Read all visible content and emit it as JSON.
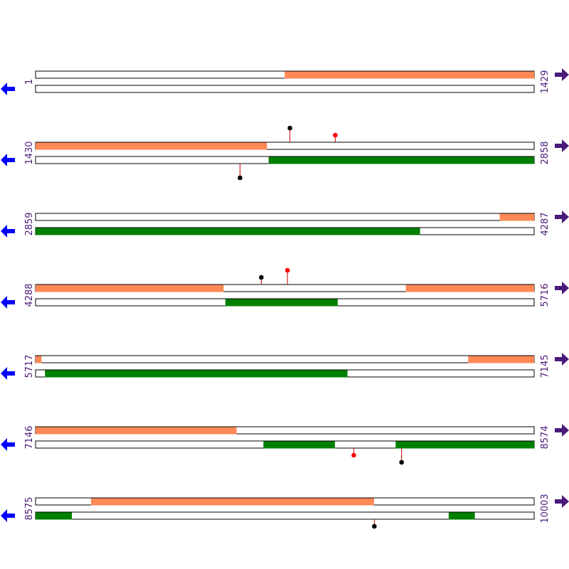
{
  "colors": {
    "strand_fill": "#ffffff",
    "strand_outline": "#000000",
    "feature_top": "#ff8855",
    "feature_bottom": "#008000",
    "left_arrow": "#0000ff",
    "right_arrow": "#4a1a7a",
    "label": "#4a1a7a",
    "pin_stem": "#cc0000",
    "pin_black": "#000000",
    "pin_red": "#ff0000"
  },
  "icons": {
    "left": "arrow-left-icon",
    "right": "arrow-right-icon"
  },
  "rows": [
    {
      "start": 1,
      "end": 1429,
      "start_label": "1",
      "end_label": "1429",
      "top_features": [
        [
          715,
          1429
        ]
      ],
      "bottom_features": [],
      "pins": []
    },
    {
      "start": 1430,
      "end": 2858,
      "start_label": "1430",
      "end_label": "2858",
      "top_features": [
        [
          1430,
          2092
        ]
      ],
      "bottom_features": [
        [
          2098,
          2858
        ]
      ],
      "pins": [
        {
          "pos": 2159,
          "side": "top",
          "color": "black",
          "height": "tall"
        },
        {
          "pos": 2289,
          "side": "top",
          "color": "red",
          "height": "short"
        },
        {
          "pos": 2016,
          "side": "bottom",
          "color": "black",
          "height": "tall"
        }
      ]
    },
    {
      "start": 2859,
      "end": 4287,
      "start_label": "2859",
      "end_label": "4287",
      "top_features": [
        [
          4189,
          4287
        ]
      ],
      "bottom_features": [
        [
          2859,
          3960
        ]
      ],
      "pins": []
    },
    {
      "start": 4288,
      "end": 5716,
      "start_label": "4288",
      "end_label": "5716",
      "top_features": [
        [
          4288,
          4826
        ],
        [
          5349,
          5716
        ]
      ],
      "bottom_features": [
        [
          4832,
          5153
        ]
      ],
      "pins": [
        {
          "pos": 4935,
          "side": "top",
          "color": "black",
          "height": "short"
        },
        {
          "pos": 5010,
          "side": "top",
          "color": "red",
          "height": "tall"
        }
      ]
    },
    {
      "start": 5717,
      "end": 7145,
      "start_label": "5717",
      "end_label": "7145",
      "top_features": [
        [
          5717,
          5733
        ],
        [
          6957,
          7145
        ]
      ],
      "bottom_features": [
        [
          5744,
          6610
        ]
      ],
      "pins": []
    },
    {
      "start": 7146,
      "end": 8574,
      "start_label": "7146",
      "end_label": "8574",
      "top_features": [
        [
          7146,
          7721
        ]
      ],
      "bottom_features": [
        [
          7799,
          8003
        ],
        [
          8178,
          8574
        ]
      ],
      "pins": [
        {
          "pos": 8058,
          "side": "bottom",
          "color": "red",
          "height": "short"
        },
        {
          "pos": 8195,
          "side": "bottom",
          "color": "black",
          "height": "tall"
        }
      ]
    },
    {
      "start": 8575,
      "end": 10003,
      "start_label": "8575",
      "end_label": "10003",
      "top_features": [
        [
          8734,
          9544
        ]
      ],
      "bottom_features": [
        [
          8575,
          8678
        ],
        [
          9759,
          9833
        ]
      ],
      "pins": [
        {
          "pos": 9546,
          "side": "bottom",
          "color": "black",
          "height": "short"
        }
      ]
    }
  ]
}
